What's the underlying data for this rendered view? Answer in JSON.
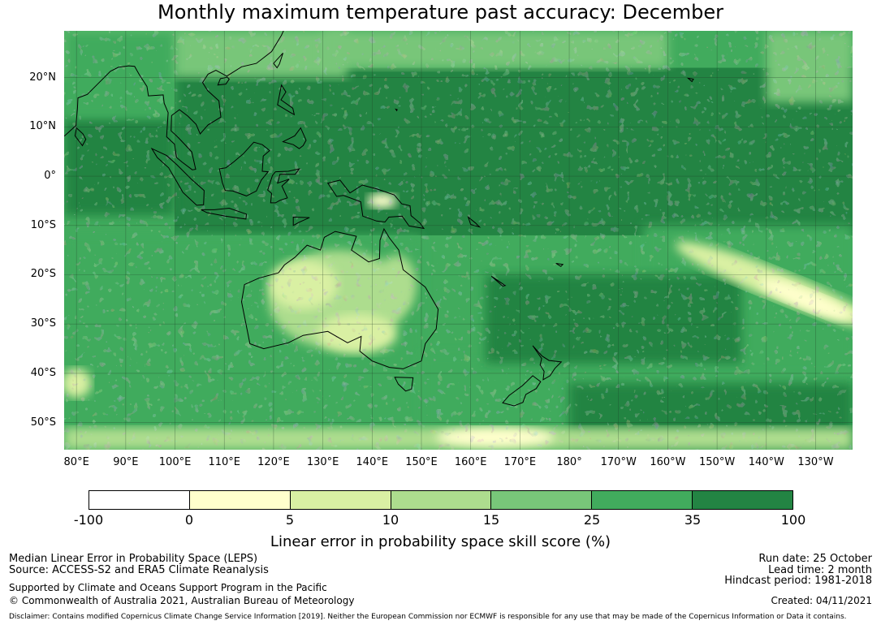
{
  "title": "Monthly maximum temperature past accuracy: December",
  "map": {
    "lat_labels": [
      "20°N",
      "10°N",
      "0°",
      "10°S",
      "20°S",
      "30°S",
      "40°S",
      "50°S"
    ],
    "lon_labels": [
      "80°E",
      "90°E",
      "100°E",
      "110°E",
      "120°E",
      "130°E",
      "140°E",
      "150°E",
      "160°E",
      "170°E",
      "180°",
      "170°W",
      "160°W",
      "150°W",
      "140°W",
      "130°W"
    ],
    "lat_values": [
      20,
      10,
      0,
      -10,
      -20,
      -30,
      -40,
      -50
    ],
    "lon_values": [
      80,
      90,
      100,
      110,
      120,
      130,
      140,
      150,
      160,
      170,
      180,
      190,
      200,
      210,
      220,
      230
    ],
    "extent": {
      "lon_min": 77.5,
      "lon_max": 237.5,
      "lat_min": -55.5,
      "lat_max": 29.5
    }
  },
  "colorbar": {
    "ticks": [
      "-100",
      "0",
      "5",
      "10",
      "15",
      "25",
      "35",
      "100"
    ],
    "colors": [
      "#ffffff",
      "#ffffcc",
      "#d9f0a3",
      "#addd8e",
      "#78c679",
      "#41ab5d",
      "#238443"
    ],
    "label": "Linear error in probability space skill score (%)"
  },
  "footer": {
    "left1": "Median Linear Error in Probability Space (LEPS)",
    "left2": "Source: ACCESS-S2 and ERA5 Climate Reanalysis",
    "left3": "Supported by Climate and Oceans Support Program in the Pacific",
    "left4": "© Commonwealth of Australia 2021, Australian Bureau of Meteorology",
    "right1": "Run date: 25 October",
    "right2": "Lead time: 2 month",
    "right3": "Hindcast period: 1981-2018",
    "right4": "Created: 04/11/2021",
    "disclaimer": "Disclaimer: Contains modified Copernicus Climate Change Service Information [2019]. Neither the European Commission nor ECMWF is responsible for any use that may be made of the Copernicus Information or Data it contains."
  }
}
